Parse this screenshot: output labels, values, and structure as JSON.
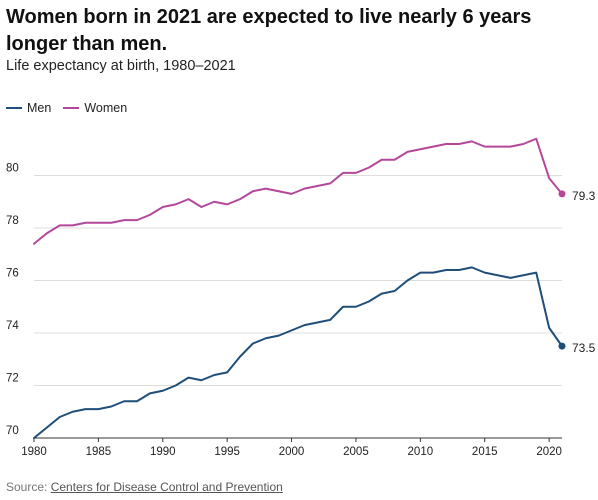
{
  "header": {
    "title": "Women born in 2021 are expected to live nearly 6 years longer than men.",
    "subtitle": "Life expectancy at birth, 1980–2021"
  },
  "legend": [
    {
      "label": "Men",
      "color": "#1f4e79"
    },
    {
      "label": "Women",
      "color": "#b5479b"
    }
  ],
  "footer": {
    "source_prefix": "Source: ",
    "source_link": "Centers for Disease Control and Prevention"
  },
  "chart_data": {
    "type": "line",
    "xlim": [
      1980,
      2021
    ],
    "ylim": [
      70,
      82
    ],
    "x_ticks": [
      1980,
      1985,
      1990,
      1995,
      2000,
      2005,
      2010,
      2015,
      2020
    ],
    "y_ticks": [
      70,
      72,
      74,
      76,
      78,
      80
    ],
    "grid": "horizontal",
    "legend_position": "top-left",
    "x": [
      1980,
      1981,
      1982,
      1983,
      1984,
      1985,
      1986,
      1987,
      1988,
      1989,
      1990,
      1991,
      1992,
      1993,
      1994,
      1995,
      1996,
      1997,
      1998,
      1999,
      2000,
      2001,
      2002,
      2003,
      2004,
      2005,
      2006,
      2007,
      2008,
      2009,
      2010,
      2011,
      2012,
      2013,
      2014,
      2015,
      2016,
      2017,
      2018,
      2019,
      2020,
      2021
    ],
    "series": [
      {
        "name": "Men",
        "color": "#1f4e79",
        "values": [
          70.0,
          70.4,
          70.8,
          71.0,
          71.1,
          71.1,
          71.2,
          71.4,
          71.4,
          71.7,
          71.8,
          72.0,
          72.3,
          72.2,
          72.4,
          72.5,
          73.1,
          73.6,
          73.8,
          73.9,
          74.1,
          74.3,
          74.4,
          74.5,
          75.0,
          75.0,
          75.2,
          75.5,
          75.6,
          76.0,
          76.3,
          76.3,
          76.4,
          76.4,
          76.5,
          76.3,
          76.2,
          76.1,
          76.2,
          76.3,
          74.2,
          73.5
        ],
        "end_label": "73.5"
      },
      {
        "name": "Women",
        "color": "#b5479b",
        "values": [
          77.4,
          77.8,
          78.1,
          78.1,
          78.2,
          78.2,
          78.2,
          78.3,
          78.3,
          78.5,
          78.8,
          78.9,
          79.1,
          78.8,
          79.0,
          78.9,
          79.1,
          79.4,
          79.5,
          79.4,
          79.3,
          79.5,
          79.6,
          79.7,
          80.1,
          80.1,
          80.3,
          80.6,
          80.6,
          80.9,
          81.0,
          81.1,
          81.2,
          81.2,
          81.3,
          81.1,
          81.1,
          81.1,
          81.2,
          81.4,
          79.9,
          79.3
        ],
        "end_label": "79.3"
      }
    ]
  }
}
